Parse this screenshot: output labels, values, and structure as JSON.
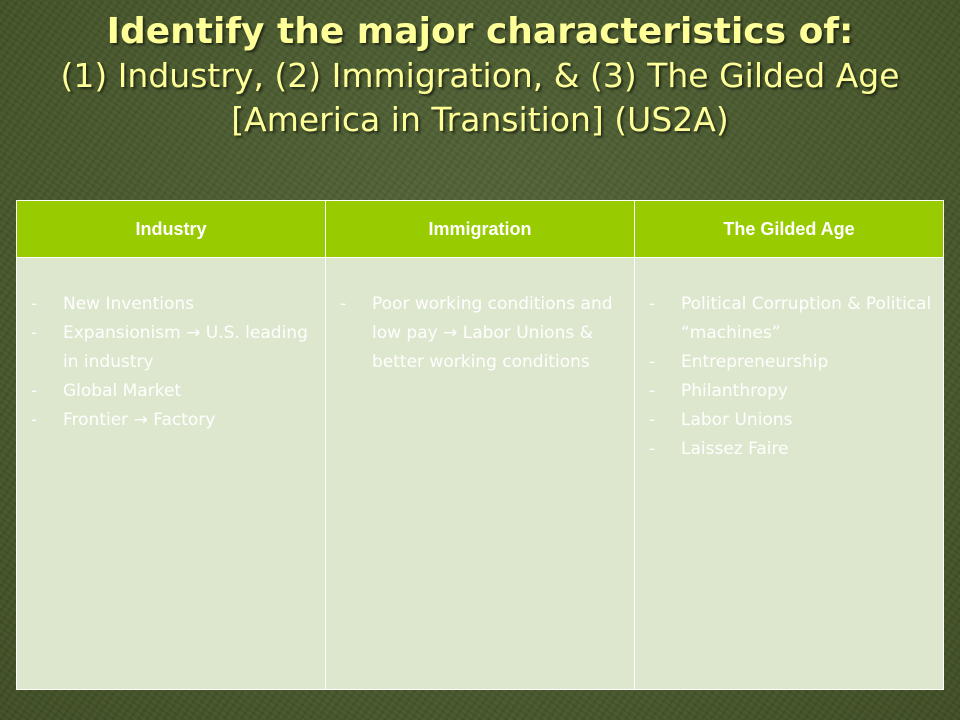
{
  "title": {
    "bold": "Identify the major characteristics of:",
    "rest": "(1) Industry, (2) Immigration, & (3) The Gilded Age [America in Transition] (US2A)"
  },
  "colors": {
    "background": "#4a5a2c",
    "title_text": "#ffff99",
    "header_fill": "#99cc00",
    "cell_fill": "#dde7cd",
    "body_text": "#ffffff"
  },
  "table": {
    "headers": [
      "Industry",
      "Immigration",
      "The Gilded Age"
    ],
    "bullet": "-",
    "columns": [
      [
        "New Inventions",
        "Expansionism → U.S. leading in industry",
        "Global Market",
        "Frontier → Factory"
      ],
      [
        "Poor working conditions and low pay → Labor Unions & better working conditions"
      ],
      [
        "Political Corruption & Political “machines”",
        "Entrepreneurship",
        "Philanthropy",
        "Labor Unions",
        "Laissez Faire"
      ]
    ]
  }
}
